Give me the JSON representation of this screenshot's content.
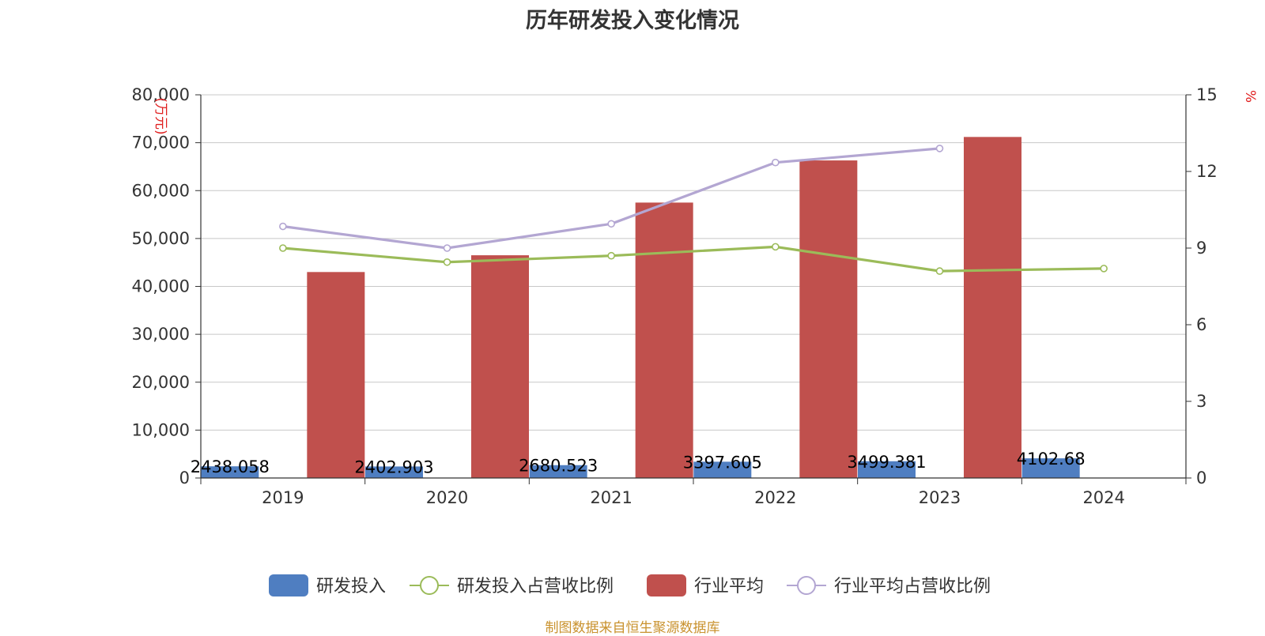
{
  "title": "历年研发投入变化情况",
  "source_note": "制图数据来自恒生聚源数据库",
  "chart_data": {
    "type": "bar",
    "categories": [
      "2019",
      "2020",
      "2021",
      "2022",
      "2023",
      "2024"
    ],
    "y_left": {
      "label": "(万元)",
      "min": 0,
      "max": 80000,
      "ticks": [
        "0",
        "10,000",
        "20,000",
        "30,000",
        "40,000",
        "50,000",
        "60,000",
        "70,000",
        "80,000"
      ]
    },
    "y_right": {
      "label": "%",
      "min": 0,
      "max": 15,
      "ticks": [
        "0",
        "3",
        "6",
        "9",
        "12",
        "15"
      ]
    },
    "grid": true,
    "legend_position": "bottom",
    "series": [
      {
        "name": "研发投入",
        "type": "bar",
        "axis": "left",
        "color": "#4f7ec1",
        "values": [
          2438.058,
          2402.903,
          2680.523,
          3397.605,
          3499.381,
          4102.68
        ],
        "labels": [
          "2438.058",
          "2402.903",
          "2680.523",
          "3397.605",
          "3499.381",
          "4102.68"
        ]
      },
      {
        "name": "研发投入占营收比例",
        "type": "line",
        "axis": "right",
        "color": "#9bbb59",
        "values": [
          9.0,
          8.45,
          8.7,
          9.05,
          8.1,
          8.2
        ]
      },
      {
        "name": "行业平均",
        "type": "bar",
        "axis": "left",
        "color": "#c0504d",
        "values": [
          43000,
          46500,
          57500,
          66300,
          71200,
          null
        ]
      },
      {
        "name": "行业平均占营收比例",
        "type": "line",
        "axis": "right",
        "color": "#b3a6d2",
        "values": [
          9.85,
          9.0,
          9.95,
          12.35,
          12.9,
          null
        ]
      }
    ]
  }
}
